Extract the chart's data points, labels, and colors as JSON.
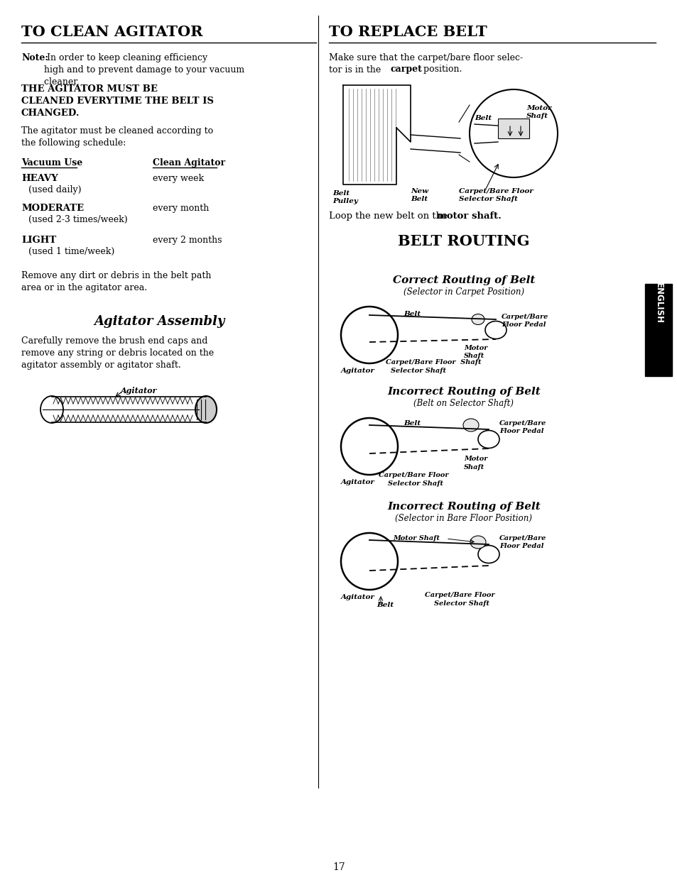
{
  "page_bg": "#ffffff",
  "page_width": 9.54,
  "page_height": 12.4,
  "dpi": 100,
  "left_col": {
    "title": "TO CLEAN AGITATOR",
    "col1_header": "Vacuum Use",
    "col2_header": "Clean Agitator",
    "rows": [
      {
        "col1_bold": "HEAVY",
        "col1_normal": "  (used daily)",
        "col2": "every week"
      },
      {
        "col1_bold": "MODERATE",
        "col1_normal": "  (used 2-3 times/week)",
        "col2": "every month"
      },
      {
        "col1_bold": "LIGHT",
        "col1_normal": "  (used 1 time/week)",
        "col2": "every 2 months"
      }
    ],
    "remove_text": "Remove any dirt or debris in the belt path\narea or in the agitator area.",
    "assembly_title": "Agitator Assembly",
    "assembly_text": "Carefully remove the brush end caps and\nremove any string or debris located on the\nagitator assembly or agitator shaft."
  },
  "right_col": {
    "title": "TO REPLACE BELT",
    "loop_text_prefix": "Loop the new belt on the ",
    "loop_text_bold": "motor shaft.",
    "belt_routing_title": "BELT ROUTING",
    "correct_title": "Correct Routing of Belt",
    "correct_sub": "(Selector in Carpet Position)",
    "incorrect1_title": "Incorrect Routing of Belt",
    "incorrect1_sub": "(Belt on Selector Shaft)",
    "incorrect2_title": "Incorrect Routing of Belt",
    "incorrect2_sub": "(Selector in Bare Floor Position)"
  },
  "page_number": "17",
  "english_label": "ENGLISH"
}
